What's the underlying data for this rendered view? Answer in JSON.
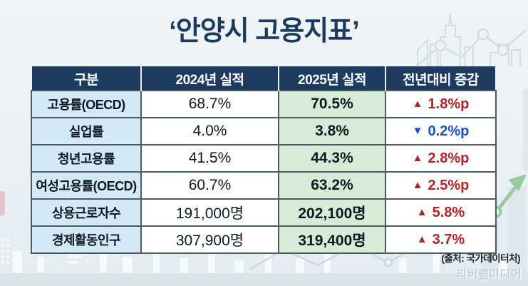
{
  "title": "‘안양시 고용지표’",
  "table": {
    "headers": [
      "구분",
      "2024년 실적",
      "2025년 실적",
      "전년대비 증감"
    ],
    "rows": [
      {
        "label": "고용률(OECD)",
        "y2024": "68.7%",
        "y2025": "70.5%",
        "change": "1.8%p",
        "direction": "up"
      },
      {
        "label": "실업률",
        "y2024": "4.0%",
        "y2025": "3.8%",
        "change": "0.2%p",
        "direction": "down"
      },
      {
        "label": "청년고용률",
        "y2024": "41.5%",
        "y2025": "44.3%",
        "change": "2.8%p",
        "direction": "up"
      },
      {
        "label": "여성고용률(OECD)",
        "y2024": "60.7%",
        "y2025": "63.2%",
        "change": "2.5%p",
        "direction": "up"
      },
      {
        "label": "상용근로자수",
        "y2024": "191,000명",
        "y2025": "202,100명",
        "change": "5.8%",
        "direction": "up"
      },
      {
        "label": "경제활동인구",
        "y2024": "307,900명",
        "y2025": "319,400명",
        "change": "3.7%",
        "direction": "up"
      }
    ]
  },
  "source": "(출처: 국가데이터처)",
  "watermark": "리버럴미디어",
  "icons": {
    "up": "▲",
    "down": "▼"
  },
  "colors": {
    "up": "#b2242c",
    "down": "#1b50c5",
    "header_bg": "#1d3c60",
    "label_bg": "#d3e9f5",
    "y2025_bg": "#d7ecd6",
    "title": "#1c3a5e",
    "arrow_decor_green": "#97cba0"
  },
  "chart_data": {
    "type": "table",
    "title": "‘안양시 고용지표’",
    "columns": [
      "구분",
      "2024년 실적",
      "2025년 실적",
      "전년대비 증감"
    ],
    "rows": [
      [
        "고용률(OECD)",
        "68.7%",
        "70.5%",
        "▲ 1.8%p"
      ],
      [
        "실업률",
        "4.0%",
        "3.8%",
        "▼ 0.2%p"
      ],
      [
        "청년고용률",
        "41.5%",
        "44.3%",
        "▲ 2.8%p"
      ],
      [
        "여성고용률(OECD)",
        "60.7%",
        "63.2%",
        "▲ 2.5%p"
      ],
      [
        "상용근로자수",
        "191,000명",
        "202,100명",
        "▲ 5.8%"
      ],
      [
        "경제활동인구",
        "307,900명",
        "319,400명",
        "▲ 3.7%"
      ]
    ],
    "source": "(출처: 국가데이터처)"
  }
}
